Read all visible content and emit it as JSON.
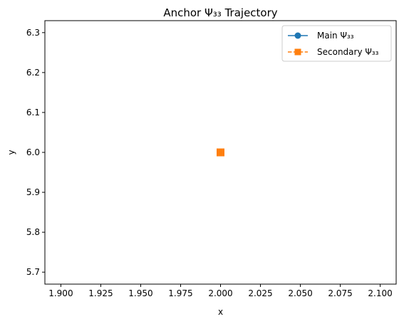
{
  "chart_data": {
    "type": "line",
    "title": "Anchor Ψ₃₃ Trajectory",
    "xlabel": "x",
    "ylabel": "y",
    "xlim": [
      1.89,
      2.11
    ],
    "ylim": [
      5.67,
      6.33
    ],
    "xticks": [
      "1.900",
      "1.925",
      "1.950",
      "1.975",
      "2.000",
      "2.025",
      "2.050",
      "2.075",
      "2.100"
    ],
    "xtick_values": [
      1.9,
      1.925,
      1.95,
      1.975,
      2.0,
      2.025,
      2.05,
      2.075,
      2.1
    ],
    "yticks": [
      "5.7",
      "5.8",
      "5.9",
      "6.0",
      "6.1",
      "6.2",
      "6.3"
    ],
    "ytick_values": [
      5.7,
      5.8,
      5.9,
      6.0,
      6.1,
      6.2,
      6.3
    ],
    "grid": false,
    "legend_position": "top-right",
    "series": [
      {
        "name": "Main Ψ₃₃",
        "color": "#1f77b4",
        "marker": "circle",
        "line_style": "solid",
        "x": [
          2.0
        ],
        "y": [
          6.0
        ]
      },
      {
        "name": "Secondary Ψ₃₃",
        "color": "#ff7f0e",
        "marker": "square",
        "line_style": "dashed",
        "x": [
          2.0
        ],
        "y": [
          6.0
        ]
      }
    ]
  }
}
